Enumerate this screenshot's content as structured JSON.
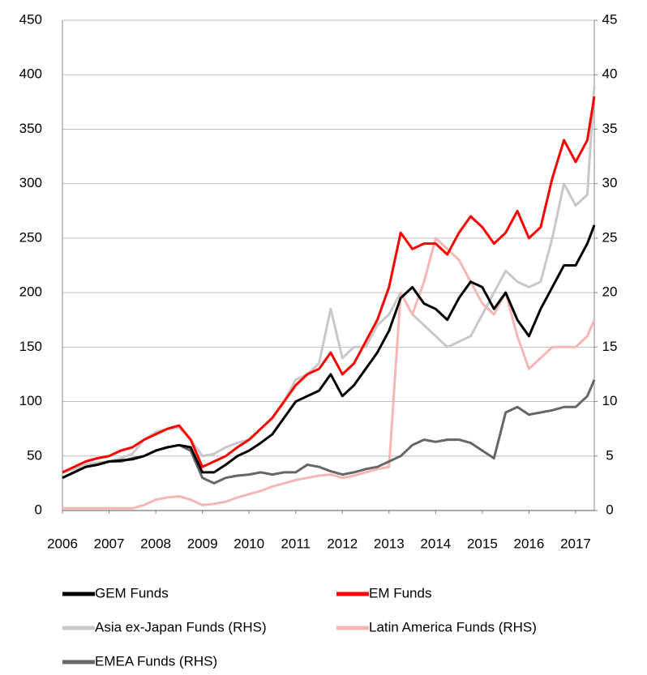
{
  "chart_data": {
    "type": "line",
    "x": [
      2006,
      2006.25,
      2006.5,
      2006.75,
      2007,
      2007.25,
      2007.5,
      2007.75,
      2008,
      2008.25,
      2008.5,
      2008.75,
      2009,
      2009.25,
      2009.5,
      2009.75,
      2010,
      2010.25,
      2010.5,
      2010.75,
      2011,
      2011.25,
      2011.5,
      2011.75,
      2012,
      2012.25,
      2012.5,
      2012.75,
      2013,
      2013.25,
      2013.5,
      2013.75,
      2014,
      2014.25,
      2014.5,
      2014.75,
      2015,
      2015.25,
      2015.5,
      2015.75,
      2016,
      2016.25,
      2016.5,
      2016.75,
      2017,
      2017.25,
      2017.4
    ],
    "xlim": [
      2006,
      2017.4
    ],
    "xticks": [
      2006,
      2007,
      2008,
      2009,
      2010,
      2011,
      2012,
      2013,
      2014,
      2015,
      2016,
      2017
    ],
    "ylim": [
      0,
      450
    ],
    "yticks": [
      0,
      50,
      100,
      150,
      200,
      250,
      300,
      350,
      400,
      450
    ],
    "y2lim": [
      0,
      45
    ],
    "y2ticks": [
      0,
      5,
      10,
      15,
      20,
      25,
      30,
      35,
      40,
      45
    ],
    "grid": true,
    "series": [
      {
        "name": "GEM Funds",
        "color": "#000000",
        "values": [
          30,
          35,
          40,
          42,
          45,
          46,
          47,
          50,
          55,
          58,
          60,
          58,
          35,
          35,
          42,
          50,
          55,
          62,
          70,
          85,
          100,
          105,
          110,
          125,
          105,
          115,
          130,
          145,
          165,
          195,
          205,
          190,
          185,
          175,
          195,
          210,
          205,
          185,
          200,
          175,
          160,
          185,
          205,
          225,
          225,
          245,
          262
        ]
      },
      {
        "name": "EM Funds",
        "color": "#ff0000",
        "values": [
          35,
          40,
          45,
          48,
          50,
          55,
          58,
          65,
          70,
          75,
          78,
          65,
          40,
          45,
          50,
          58,
          65,
          75,
          85,
          100,
          115,
          125,
          130,
          145,
          125,
          135,
          155,
          175,
          205,
          255,
          240,
          245,
          245,
          235,
          255,
          270,
          260,
          245,
          255,
          275,
          250,
          260,
          305,
          340,
          320,
          340,
          380
        ]
      },
      {
        "name": "Asia ex-Japan Funds (RHS)",
        "color": "#c8c8c8",
        "axis": "y2",
        "values": [
          3.5,
          3.8,
          4.2,
          4.4,
          4.5,
          4.8,
          5.2,
          6.5,
          7.2,
          7.5,
          7.6,
          6.5,
          5.0,
          5.2,
          5.8,
          6.2,
          6.5,
          7.5,
          8.5,
          10,
          12,
          12.5,
          13.5,
          18.5,
          14,
          15,
          15,
          17,
          18,
          20,
          18,
          17,
          16,
          15,
          15.5,
          16,
          18,
          20,
          22,
          21,
          20.5,
          21,
          25,
          30,
          28,
          29,
          39
        ]
      },
      {
        "name": "Latin America Funds (RHS)",
        "color": "#f7b6b6",
        "axis": "y2",
        "values": [
          0.2,
          0.2,
          0.2,
          0.2,
          0.2,
          0.2,
          0.2,
          0.5,
          1.0,
          1.2,
          1.3,
          1.0,
          0.5,
          0.6,
          0.8,
          1.2,
          1.5,
          1.8,
          2.2,
          2.5,
          2.8,
          3.0,
          3.2,
          3.3,
          3.0,
          3.2,
          3.5,
          3.8,
          4.0,
          20,
          18,
          21,
          25,
          24,
          23,
          21,
          19,
          18,
          20,
          16,
          13,
          14,
          15,
          15,
          15,
          16,
          17.5
        ]
      },
      {
        "name": "EMEA Funds (RHS)",
        "color": "#666666",
        "axis": "y2",
        "values": [
          3.0,
          3.5,
          4.0,
          4.2,
          4.5,
          4.5,
          4.8,
          5.0,
          5.5,
          5.8,
          6.0,
          5.5,
          3.0,
          2.5,
          3.0,
          3.2,
          3.3,
          3.5,
          3.3,
          3.5,
          3.5,
          4.2,
          4.0,
          3.6,
          3.3,
          3.5,
          3.8,
          4.0,
          4.5,
          5.0,
          6.0,
          6.5,
          6.3,
          6.5,
          6.5,
          6.2,
          5.5,
          4.8,
          9.0,
          9.5,
          8.8,
          9.0,
          9.2,
          9.5,
          9.5,
          10.5,
          12
        ]
      }
    ]
  }
}
